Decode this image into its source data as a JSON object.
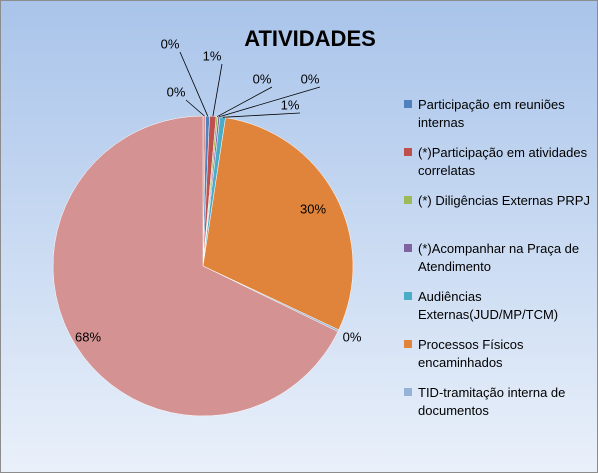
{
  "chart_data": {
    "type": "pie",
    "title": "ATIVIDADES",
    "categories": [
      null,
      "Participação em reuniões internas",
      "(*)Participação em atividades correlatas",
      "(*) Diligências Externas PRPJ",
      "(*)Acompanhar na Praça de Atendimento",
      "Audiências Externas(JUD/MP/TCM)",
      "Processos Físicos encaminhados",
      "TID-tramitação interna de documentos",
      null
    ],
    "values": [
      0.3,
      0.4,
      0.7,
      0.2,
      0.2,
      0.6,
      29.6,
      0.2,
      67.8
    ],
    "value_labels": [
      "0%",
      "0%",
      "1%",
      "0%",
      "0%",
      "1%",
      "30%",
      "0%",
      "68%"
    ],
    "colors": [
      "#d99694",
      "#4f81bd",
      "#c0504d",
      "#9bbb59",
      "#8064a2",
      "#4bacc6",
      "#e0843c",
      "#95b3d7",
      "#d49392"
    ],
    "legend": "right"
  }
}
